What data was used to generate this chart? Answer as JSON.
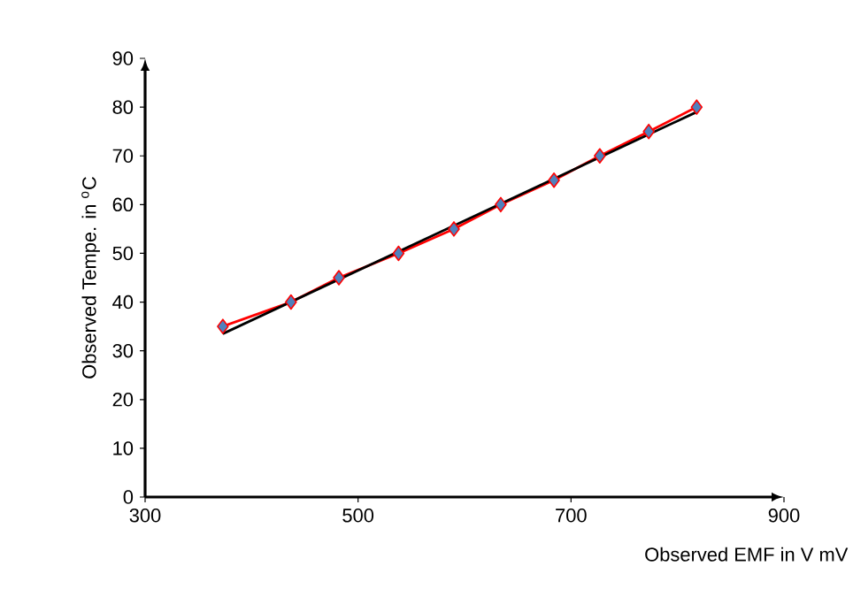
{
  "chart_data": {
    "type": "line",
    "xlabel": "Observed EMF in V mV",
    "ylabel": "Observed Tempe. in $^{o}$C",
    "xlim": [
      300,
      900
    ],
    "xticks": [
      300,
      500,
      700,
      900
    ],
    "ylim": [
      0,
      90
    ],
    "yticks": [
      0,
      10,
      20,
      30,
      40,
      50,
      60,
      70,
      80,
      90
    ],
    "marker": "diamond",
    "line_style": "solid",
    "series": [
      {
        "color": "#ff0000",
        "colors": [
          "#4f81bd",
          "#4f81bd",
          "#4f81bd",
          "#4f81bd",
          "#4f81bd",
          "#4f81bd",
          "#4f81bd",
          "#4f81bd",
          "#4f81bd",
          "#4f81bd"
        ],
        "x": [
          373,
          437,
          482,
          538,
          590,
          634,
          684,
          727,
          773,
          818
        ],
        "values": [
          35,
          40,
          45,
          50,
          55,
          60,
          65,
          70,
          75,
          80
        ]
      },
      {
        "type": "line",
        "color": "#000000",
        "marker": "none",
        "x": [
          373,
          818
        ],
        "values": [
          33.5,
          79
        ]
      }
    ]
  }
}
